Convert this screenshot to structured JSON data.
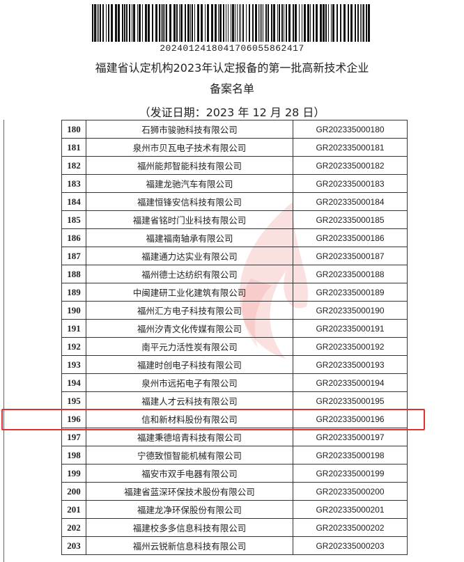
{
  "header": {
    "barcode_number": "2024012418041706055862417",
    "title": "福建省认定机构2023年认定报备的第一批高新技术企业",
    "subtitle": "备案名单",
    "issue_date": "（发证日期：2023 年 12 月 28 日）"
  },
  "table": {
    "rows": [
      [
        "180",
        "石狮市骏驰科技有限公司",
        "GR202335000180"
      ],
      [
        "181",
        "泉州市贝瓦电子技术有限公司",
        "GR202335000181"
      ],
      [
        "182",
        "福州能邦智能科技有限公司",
        "GR202335000182"
      ],
      [
        "183",
        "福建龙驰汽车有限公司",
        "GR202335000183"
      ],
      [
        "184",
        "福建恒锋安信科技有限公司",
        "GR202335000184"
      ],
      [
        "185",
        "福建省铭时门业科技有限公司",
        "GR202335000185"
      ],
      [
        "186",
        "福建福南轴承有限公司",
        "GR202335000186"
      ],
      [
        "187",
        "福建通力达实业有限公司",
        "GR202335000187"
      ],
      [
        "188",
        "福州德士达纺织有限公司",
        "GR202335000188"
      ],
      [
        "189",
        "中闽建研工业化建筑有限公司",
        "GR202335000189"
      ],
      [
        "190",
        "福州汇方电子科技有限公司",
        "GR202335000190"
      ],
      [
        "191",
        "福州汐青文化传媒有限公司",
        "GR202335000191"
      ],
      [
        "192",
        "南平元力活性炭有限公司",
        "GR202335000192"
      ],
      [
        "193",
        "福建时创电子科技有限公司",
        "GR202335000193"
      ],
      [
        "194",
        "泉州市远拓电子有限公司",
        "GR202335000194"
      ],
      [
        "195",
        "福建人才云科技有限公司",
        "GR202335000195"
      ],
      [
        "196",
        "信和新材料股份有限公司",
        "GR202335000196"
      ],
      [
        "197",
        "福建秉德培青科技有限公司",
        "GR202335000197"
      ],
      [
        "198",
        "宁德致恒智能机械有限公司",
        "GR202335000198"
      ],
      [
        "199",
        "福安市双手电器有限公司",
        "GR202335000199"
      ],
      [
        "200",
        "福建省蓝深环保技术股份有限公司",
        "GR202335000200"
      ],
      [
        "201",
        "福建龙净环保股份有限公司",
        "GR202335000201"
      ],
      [
        "202",
        "福建校多多信息科技有限公司",
        "GR202335000202"
      ],
      [
        "203",
        "福州云锐新信息科技有限公司",
        "GR202335000203"
      ]
    ]
  }
}
